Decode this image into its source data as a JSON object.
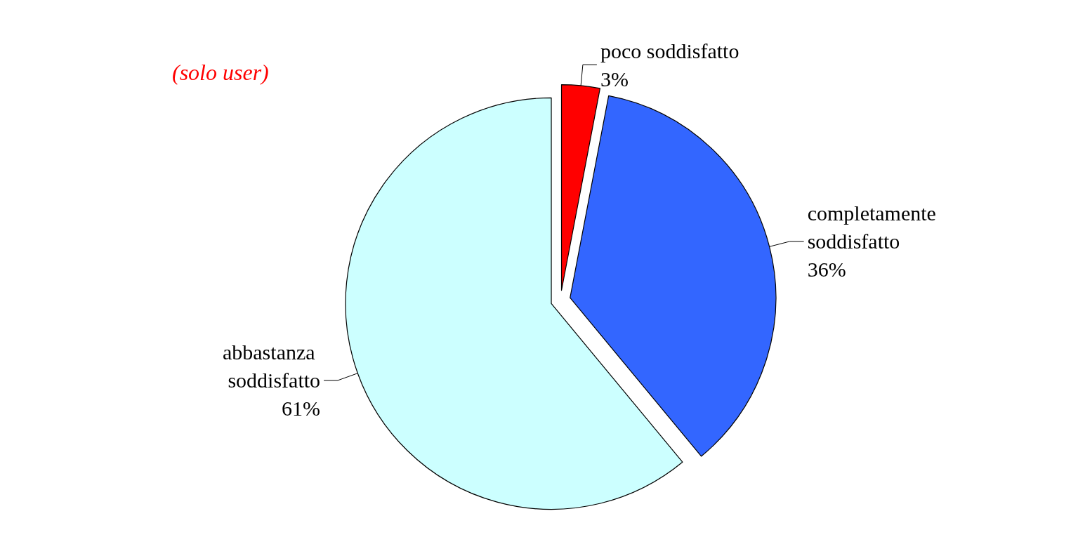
{
  "chart_data": {
    "type": "pie",
    "title": "(solo user)",
    "categories": [
      "poco soddisfatto",
      "completamente soddisfatto",
      "abbastanza soddisfatto"
    ],
    "values": [
      3,
      36,
      61
    ],
    "value_labels": [
      "3%",
      "36%",
      "61%"
    ],
    "colors": [
      "#ff0000",
      "#3366ff",
      "#ccffff"
    ],
    "legend": false
  }
}
